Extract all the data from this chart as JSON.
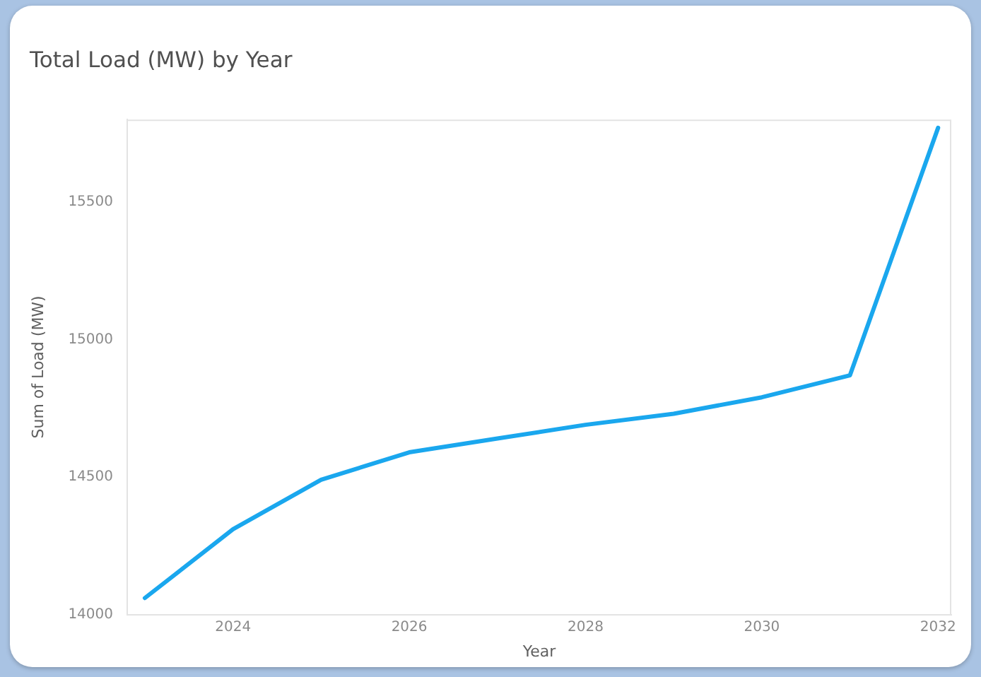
{
  "chart_data": {
    "type": "line",
    "title": "Total Load (MW) by Year",
    "xlabel": "Year",
    "ylabel": "Sum of Load (MW)",
    "x": [
      2023,
      2024,
      2025,
      2026,
      2027,
      2028,
      2029,
      2030,
      2031,
      2032
    ],
    "values": [
      14060,
      14310,
      14490,
      14590,
      14640,
      14690,
      14730,
      14790,
      14870,
      15770
    ],
    "color": "#1aa7ee",
    "xlim": [
      2022.8,
      2032.15
    ],
    "xticks": [
      2024,
      2026,
      2028,
      2030,
      2032
    ],
    "ylim": [
      14000,
      15800
    ],
    "yticks": [
      14000,
      14500,
      15000,
      15500
    ],
    "grid": false,
    "legend": false
  }
}
